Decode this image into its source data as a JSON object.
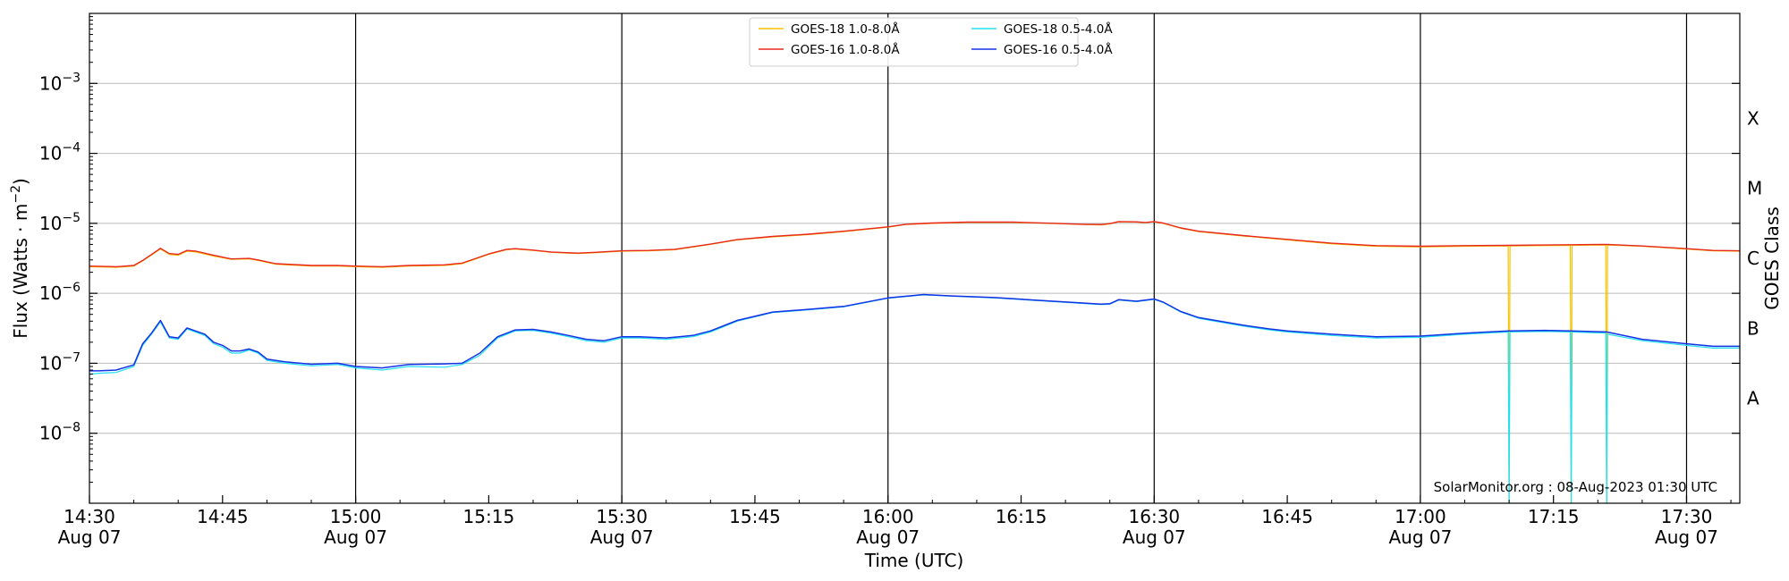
{
  "chart_data": {
    "type": "line",
    "xlabel": "Time (UTC)",
    "ylabel": "Flux (Watts · m",
    "ylabel_exponent": "−2",
    "ylabel_close": ")",
    "y2label": "GOES Class",
    "yscale": "log",
    "xlim": [
      "2023-08-07T14:30",
      "2023-08-07T17:36"
    ],
    "ylim": [
      1e-09,
      0.01
    ],
    "grid": "horizontal",
    "legend_position": "top-center",
    "credit": "SolarMonitor.org : 08-Aug-2023 01:30 UTC",
    "x_ticks": [
      {
        "time": "2023-08-07T14:30",
        "label": "14:30",
        "date": "Aug 07"
      },
      {
        "time": "2023-08-07T14:45",
        "label": "14:45",
        "date": ""
      },
      {
        "time": "2023-08-07T15:00",
        "label": "15:00",
        "date": "Aug 07"
      },
      {
        "time": "2023-08-07T15:15",
        "label": "15:15",
        "date": ""
      },
      {
        "time": "2023-08-07T15:30",
        "label": "15:30",
        "date": "Aug 07"
      },
      {
        "time": "2023-08-07T15:45",
        "label": "15:45",
        "date": ""
      },
      {
        "time": "2023-08-07T16:00",
        "label": "16:00",
        "date": "Aug 07"
      },
      {
        "time": "2023-08-07T16:15",
        "label": "16:15",
        "date": ""
      },
      {
        "time": "2023-08-07T16:30",
        "label": "16:30",
        "date": "Aug 07"
      },
      {
        "time": "2023-08-07T16:45",
        "label": "16:45",
        "date": ""
      },
      {
        "time": "2023-08-07T17:00",
        "label": "17:00",
        "date": "Aug 07"
      },
      {
        "time": "2023-08-07T17:15",
        "label": "17:15",
        "date": ""
      },
      {
        "time": "2023-08-07T17:30",
        "label": "17:30",
        "date": "Aug 07"
      }
    ],
    "vertical_lines": [
      "2023-08-07T15:00",
      "2023-08-07T15:30",
      "2023-08-07T16:00",
      "2023-08-07T16:30",
      "2023-08-07T17:00",
      "2023-08-07T17:30"
    ],
    "y_ticks": [
      {
        "value": 1e-08,
        "base": "10",
        "exp": "−8"
      },
      {
        "value": 1e-07,
        "base": "10",
        "exp": "−7"
      },
      {
        "value": 1e-06,
        "base": "10",
        "exp": "−6"
      },
      {
        "value": 1e-05,
        "base": "10",
        "exp": "−5"
      },
      {
        "value": 0.0001,
        "base": "10",
        "exp": "−4"
      },
      {
        "value": 0.001,
        "base": "10",
        "exp": "−3"
      }
    ],
    "goes_classes": [
      {
        "label": "A",
        "value": 3.16e-08
      },
      {
        "label": "B",
        "value": 3.16e-07
      },
      {
        "label": "C",
        "value": 3.16e-06
      },
      {
        "label": "M",
        "value": 3.16e-05
      },
      {
        "label": "X",
        "value": 0.000316
      }
    ],
    "series": [
      {
        "name": "GOES-18 1.0-8.0Å",
        "color": "#f5c400",
        "width": 1.2,
        "x": [
          "2023-08-07T14:30",
          "2023-08-07T14:33",
          "2023-08-07T14:35",
          "2023-08-07T14:36",
          "2023-08-07T14:38",
          "2023-08-07T14:39",
          "2023-08-07T14:40",
          "2023-08-07T14:41",
          "2023-08-07T14:42",
          "2023-08-07T14:44",
          "2023-08-07T14:46",
          "2023-08-07T14:48",
          "2023-08-07T14:49",
          "2023-08-07T14:51",
          "2023-08-07T14:55",
          "2023-08-07T14:58",
          "2023-08-07T15:00",
          "2023-08-07T15:03",
          "2023-08-07T15:06",
          "2023-08-07T15:10",
          "2023-08-07T15:12",
          "2023-08-07T15:15",
          "2023-08-07T15:17",
          "2023-08-07T15:18",
          "2023-08-07T15:20",
          "2023-08-07T15:22",
          "2023-08-07T15:25",
          "2023-08-07T15:27",
          "2023-08-07T15:30",
          "2023-08-07T15:33",
          "2023-08-07T15:36",
          "2023-08-07T15:40",
          "2023-08-07T15:43",
          "2023-08-07T15:47",
          "2023-08-07T15:51",
          "2023-08-07T15:55",
          "2023-08-07T16:00",
          "2023-08-07T16:02",
          "2023-08-07T16:05",
          "2023-08-07T16:09",
          "2023-08-07T16:14",
          "2023-08-07T16:19",
          "2023-08-07T16:22",
          "2023-08-07T16:24",
          "2023-08-07T16:25",
          "2023-08-07T16:26",
          "2023-08-07T16:28",
          "2023-08-07T16:29",
          "2023-08-07T16:30",
          "2023-08-07T16:31",
          "2023-08-07T16:33",
          "2023-08-07T16:35",
          "2023-08-07T16:40",
          "2023-08-07T16:45",
          "2023-08-07T16:50",
          "2023-08-07T16:55",
          "2023-08-07T17:00",
          "2023-08-07T17:05",
          "2023-08-07T17:09.9",
          "2023-08-07T17:10",
          "2023-08-07T17:10.1",
          "2023-08-07T17:14",
          "2023-08-07T17:16.9",
          "2023-08-07T17:17",
          "2023-08-07T17:17.1",
          "2023-08-07T17:20.9",
          "2023-08-07T17:21",
          "2023-08-07T17:21.1",
          "2023-08-07T17:25",
          "2023-08-07T17:30",
          "2023-08-07T17:33",
          "2023-08-07T17:36"
        ],
        "y": [
          2.4e-06,
          2.35e-06,
          2.45e-06,
          2.9e-06,
          4.3e-06,
          3.6e-06,
          3.5e-06,
          4e-06,
          3.9e-06,
          3.4e-06,
          3.05e-06,
          3.1e-06,
          2.95e-06,
          2.6e-06,
          2.45e-06,
          2.45e-06,
          2.4e-06,
          2.35e-06,
          2.45e-06,
          2.5e-06,
          2.65e-06,
          3.6e-06,
          4.2e-06,
          4.3e-06,
          4.1e-06,
          3.85e-06,
          3.7e-06,
          3.8e-06,
          4e-06,
          4.05e-06,
          4.2e-06,
          5e-06,
          5.8e-06,
          6.4e-06,
          6.9e-06,
          7.6e-06,
          8.8e-06,
          9.6e-06,
          1e-05,
          1.03e-05,
          1.03e-05,
          9.9e-06,
          9.6e-06,
          9.5e-06,
          9.8e-06,
          1.05e-05,
          1.04e-05,
          1.02e-05,
          1.05e-05,
          1e-05,
          8.5e-06,
          7.6e-06,
          6.6e-06,
          5.8e-06,
          5.1e-06,
          4.7e-06,
          4.6e-06,
          4.7e-06,
          4.75e-06,
          1e-09,
          4.75e-06,
          4.8e-06,
          4.85e-06,
          1e-09,
          4.85e-06,
          4.9e-06,
          1e-09,
          4.9e-06,
          4.7e-06,
          4.3e-06,
          4.05e-06,
          4e-06
        ]
      },
      {
        "name": "GOES-16 1.0-8.0Å",
        "color": "#e8281e",
        "width": 1.4,
        "x": [
          "2023-08-07T14:30",
          "2023-08-07T14:33",
          "2023-08-07T14:35",
          "2023-08-07T14:36",
          "2023-08-07T14:38",
          "2023-08-07T14:39",
          "2023-08-07T14:40",
          "2023-08-07T14:41",
          "2023-08-07T14:42",
          "2023-08-07T14:44",
          "2023-08-07T14:46",
          "2023-08-07T14:48",
          "2023-08-07T14:49",
          "2023-08-07T14:51",
          "2023-08-07T14:55",
          "2023-08-07T14:58",
          "2023-08-07T15:00",
          "2023-08-07T15:03",
          "2023-08-07T15:06",
          "2023-08-07T15:10",
          "2023-08-07T15:12",
          "2023-08-07T15:15",
          "2023-08-07T15:17",
          "2023-08-07T15:18",
          "2023-08-07T15:20",
          "2023-08-07T15:22",
          "2023-08-07T15:25",
          "2023-08-07T15:27",
          "2023-08-07T15:30",
          "2023-08-07T15:33",
          "2023-08-07T15:36",
          "2023-08-07T15:40",
          "2023-08-07T15:43",
          "2023-08-07T15:47",
          "2023-08-07T15:51",
          "2023-08-07T15:55",
          "2023-08-07T16:00",
          "2023-08-07T16:02",
          "2023-08-07T16:05",
          "2023-08-07T16:09",
          "2023-08-07T16:14",
          "2023-08-07T16:19",
          "2023-08-07T16:22",
          "2023-08-07T16:24",
          "2023-08-07T16:25",
          "2023-08-07T16:26",
          "2023-08-07T16:28",
          "2023-08-07T16:29",
          "2023-08-07T16:30",
          "2023-08-07T16:31",
          "2023-08-07T16:33",
          "2023-08-07T16:35",
          "2023-08-07T16:40",
          "2023-08-07T16:45",
          "2023-08-07T16:50",
          "2023-08-07T16:55",
          "2023-08-07T17:00",
          "2023-08-07T17:05",
          "2023-08-07T17:10",
          "2023-08-07T17:14",
          "2023-08-07T17:17",
          "2023-08-07T17:21",
          "2023-08-07T17:25",
          "2023-08-07T17:30",
          "2023-08-07T17:33",
          "2023-08-07T17:36"
        ],
        "y": [
          2.45e-06,
          2.4e-06,
          2.5e-06,
          2.95e-06,
          4.4e-06,
          3.7e-06,
          3.6e-06,
          4.1e-06,
          4e-06,
          3.5e-06,
          3.1e-06,
          3.15e-06,
          3e-06,
          2.65e-06,
          2.5e-06,
          2.5e-06,
          2.45e-06,
          2.4e-06,
          2.5e-06,
          2.55e-06,
          2.7e-06,
          3.65e-06,
          4.25e-06,
          4.35e-06,
          4.15e-06,
          3.9e-06,
          3.75e-06,
          3.85e-06,
          4.05e-06,
          4.1e-06,
          4.25e-06,
          5.05e-06,
          5.85e-06,
          6.5e-06,
          7e-06,
          7.7e-06,
          8.9e-06,
          9.7e-06,
          1.01e-05,
          1.04e-05,
          1.04e-05,
          1e-05,
          9.7e-06,
          9.6e-06,
          9.9e-06,
          1.06e-05,
          1.05e-05,
          1.03e-05,
          1.06e-05,
          1.01e-05,
          8.6e-06,
          7.7e-06,
          6.7e-06,
          5.9e-06,
          5.2e-06,
          4.8e-06,
          4.7e-06,
          4.8e-06,
          4.85e-06,
          4.9e-06,
          4.95e-06,
          5e-06,
          4.75e-06,
          4.35e-06,
          4.1e-06,
          4.05e-06
        ]
      },
      {
        "name": "GOES-18 0.5-4.0Å",
        "color": "#22e0f0",
        "width": 1.2,
        "x": [
          "2023-08-07T14:30",
          "2023-08-07T14:31",
          "2023-08-07T14:33",
          "2023-08-07T14:35",
          "2023-08-07T14:36",
          "2023-08-07T14:37",
          "2023-08-07T14:38",
          "2023-08-07T14:39",
          "2023-08-07T14:40",
          "2023-08-07T14:41",
          "2023-08-07T14:43",
          "2023-08-07T14:44",
          "2023-08-07T14:45",
          "2023-08-07T14:46",
          "2023-08-07T14:47",
          "2023-08-07T14:48",
          "2023-08-07T14:49",
          "2023-08-07T14:50",
          "2023-08-07T14:52",
          "2023-08-07T14:55",
          "2023-08-07T14:58",
          "2023-08-07T15:00",
          "2023-08-07T15:03",
          "2023-08-07T15:06",
          "2023-08-07T15:10",
          "2023-08-07T15:12",
          "2023-08-07T15:14",
          "2023-08-07T15:16",
          "2023-08-07T15:18",
          "2023-08-07T15:20",
          "2023-08-07T15:22",
          "2023-08-07T15:24",
          "2023-08-07T15:26",
          "2023-08-07T15:28",
          "2023-08-07T15:30",
          "2023-08-07T15:32",
          "2023-08-07T15:35",
          "2023-08-07T15:38",
          "2023-08-07T15:40",
          "2023-08-07T15:43",
          "2023-08-07T15:47",
          "2023-08-07T15:51",
          "2023-08-07T15:55",
          "2023-08-07T16:00",
          "2023-08-07T16:04",
          "2023-08-07T16:07",
          "2023-08-07T16:12",
          "2023-08-07T16:18",
          "2023-08-07T16:24",
          "2023-08-07T16:25",
          "2023-08-07T16:26",
          "2023-08-07T16:28",
          "2023-08-07T16:30",
          "2023-08-07T16:31",
          "2023-08-07T16:33",
          "2023-08-07T16:35",
          "2023-08-07T16:40",
          "2023-08-07T16:43",
          "2023-08-07T16:45",
          "2023-08-07T16:50",
          "2023-08-07T16:55",
          "2023-08-07T17:00",
          "2023-08-07T17:05",
          "2023-08-07T17:09.9",
          "2023-08-07T17:10",
          "2023-08-07T17:10.1",
          "2023-08-07T17:14",
          "2023-08-07T17:16.9",
          "2023-08-07T17:17",
          "2023-08-07T17:17.1",
          "2023-08-07T17:20.9",
          "2023-08-07T17:21",
          "2023-08-07T17:21.1",
          "2023-08-07T17:25",
          "2023-08-07T17:30",
          "2023-08-07T17:33",
          "2023-08-07T17:36"
        ],
        "y": [
          7e-08,
          7.2e-08,
          7.4e-08,
          9e-08,
          1.8e-07,
          2.6e-07,
          3.9e-07,
          2.3e-07,
          2.2e-07,
          3.1e-07,
          2.5e-07,
          1.9e-07,
          1.7e-07,
          1.4e-07,
          1.4e-07,
          1.55e-07,
          1.4e-07,
          1.1e-07,
          1e-07,
          9.2e-08,
          9.6e-08,
          8.6e-08,
          8e-08,
          9e-08,
          8.8e-08,
          9.6e-08,
          1.3e-07,
          2.3e-07,
          2.9e-07,
          2.95e-07,
          2.7e-07,
          2.4e-07,
          2.1e-07,
          2e-07,
          2.3e-07,
          2.3e-07,
          2.2e-07,
          2.4e-07,
          2.8e-07,
          4e-07,
          5.3e-07,
          5.8e-07,
          6.4e-07,
          8.5e-07,
          9.5e-07,
          9.1e-07,
          8.6e-07,
          7.7e-07,
          6.9e-07,
          7e-07,
          8e-07,
          7.6e-07,
          8.2e-07,
          7.4e-07,
          5.4e-07,
          4.4e-07,
          3.4e-07,
          3e-07,
          2.8e-07,
          2.5e-07,
          2.3e-07,
          2.35e-07,
          2.6e-07,
          2.8e-07,
          1e-09,
          2.8e-07,
          2.85e-07,
          2.8e-07,
          1e-09,
          2.8e-07,
          2.7e-07,
          1e-09,
          2.6e-07,
          2.1e-07,
          1.8e-07,
          1.65e-07,
          1.65e-07
        ]
      },
      {
        "name": "GOES-16 0.5-4.0Å",
        "color": "#1432e6",
        "width": 1.5,
        "x": [
          "2023-08-07T14:30",
          "2023-08-07T14:31",
          "2023-08-07T14:33",
          "2023-08-07T14:35",
          "2023-08-07T14:36",
          "2023-08-07T14:37",
          "2023-08-07T14:38",
          "2023-08-07T14:39",
          "2023-08-07T14:40",
          "2023-08-07T14:41",
          "2023-08-07T14:43",
          "2023-08-07T14:44",
          "2023-08-07T14:45",
          "2023-08-07T14:46",
          "2023-08-07T14:47",
          "2023-08-07T14:48",
          "2023-08-07T14:49",
          "2023-08-07T14:50",
          "2023-08-07T14:52",
          "2023-08-07T14:55",
          "2023-08-07T14:58",
          "2023-08-07T15:00",
          "2023-08-07T15:03",
          "2023-08-07T15:06",
          "2023-08-07T15:10",
          "2023-08-07T15:12",
          "2023-08-07T15:14",
          "2023-08-07T15:16",
          "2023-08-07T15:18",
          "2023-08-07T15:20",
          "2023-08-07T15:22",
          "2023-08-07T15:24",
          "2023-08-07T15:26",
          "2023-08-07T15:28",
          "2023-08-07T15:30",
          "2023-08-07T15:32",
          "2023-08-07T15:35",
          "2023-08-07T15:38",
          "2023-08-07T15:40",
          "2023-08-07T15:43",
          "2023-08-07T15:47",
          "2023-08-07T15:51",
          "2023-08-07T15:55",
          "2023-08-07T16:00",
          "2023-08-07T16:04",
          "2023-08-07T16:07",
          "2023-08-07T16:12",
          "2023-08-07T16:18",
          "2023-08-07T16:24",
          "2023-08-07T16:25",
          "2023-08-07T16:26",
          "2023-08-07T16:28",
          "2023-08-07T16:30",
          "2023-08-07T16:31",
          "2023-08-07T16:33",
          "2023-08-07T16:35",
          "2023-08-07T16:40",
          "2023-08-07T16:43",
          "2023-08-07T16:45",
          "2023-08-07T16:50",
          "2023-08-07T16:55",
          "2023-08-07T17:00",
          "2023-08-07T17:05",
          "2023-08-07T17:10",
          "2023-08-07T17:14",
          "2023-08-07T17:17",
          "2023-08-07T17:21",
          "2023-08-07T17:25",
          "2023-08-07T17:30",
          "2023-08-07T17:33",
          "2023-08-07T17:36"
        ],
        "y": [
          7.8e-08,
          7.8e-08,
          8e-08,
          9.5e-08,
          1.9e-07,
          2.7e-07,
          4.1e-07,
          2.4e-07,
          2.3e-07,
          3.2e-07,
          2.6e-07,
          2e-07,
          1.8e-07,
          1.5e-07,
          1.5e-07,
          1.6e-07,
          1.45e-07,
          1.15e-07,
          1.05e-07,
          9.7e-08,
          1e-07,
          9e-08,
          8.6e-08,
          9.6e-08,
          9.8e-08,
          1e-07,
          1.4e-07,
          2.4e-07,
          3e-07,
          3.05e-07,
          2.8e-07,
          2.5e-07,
          2.2e-07,
          2.1e-07,
          2.4e-07,
          2.4e-07,
          2.3e-07,
          2.5e-07,
          2.9e-07,
          4.1e-07,
          5.4e-07,
          5.9e-07,
          6.5e-07,
          8.6e-07,
          9.6e-07,
          9.2e-07,
          8.7e-07,
          7.8e-07,
          7e-07,
          7.1e-07,
          8.1e-07,
          7.7e-07,
          8.3e-07,
          7.5e-07,
          5.5e-07,
          4.5e-07,
          3.5e-07,
          3.1e-07,
          2.9e-07,
          2.6e-07,
          2.4e-07,
          2.45e-07,
          2.7e-07,
          2.9e-07,
          2.95e-07,
          2.9e-07,
          2.8e-07,
          2.2e-07,
          1.9e-07,
          1.75e-07,
          1.75e-07
        ]
      }
    ]
  }
}
